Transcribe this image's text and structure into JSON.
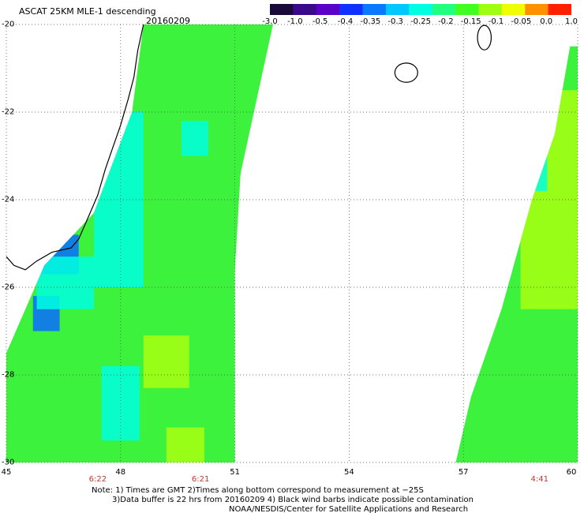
{
  "title": "ASCAT 25KM MLE-1 descending",
  "date": "20160209",
  "colorbar": {
    "ticks": [
      "-3.0",
      "-1.0",
      "-0.5",
      "-0.4",
      "-0.35",
      "-0.3",
      "-0.25",
      "-0.2",
      "-0.15",
      "-0.1",
      "-0.05",
      "0.0",
      "1.0"
    ],
    "colors": [
      "#1a0a3a",
      "#3a0a8a",
      "#5a00c8",
      "#1030ff",
      "#0a78ff",
      "#00c8ff",
      "#00ffe0",
      "#20ff80",
      "#40ff20",
      "#a0ff10",
      "#f0ff00",
      "#ff9000",
      "#ff2000"
    ]
  },
  "map": {
    "lon_range": [
      45,
      60
    ],
    "lat_range": [
      -30,
      -20
    ],
    "lat_labels": [
      "-20",
      "-22",
      "-24",
      "-26",
      "-28",
      "-30"
    ],
    "lon_labels": [
      "45",
      "48",
      "51",
      "54",
      "57",
      "60"
    ],
    "grid": true,
    "swaths": [
      {
        "name": "west",
        "polygon": [
          [
            48.6,
            -20
          ],
          [
            50.0,
            -20
          ],
          [
            50.3,
            -20
          ],
          [
            51.3,
            -21.2
          ],
          [
            51.0,
            -25.6
          ],
          [
            51.0,
            -30
          ],
          [
            45.0,
            -30
          ],
          [
            45.0,
            -27.5
          ],
          [
            46.0,
            -25.5
          ],
          [
            47.3,
            -24.3
          ],
          [
            48.3,
            -22.0
          ]
        ]
      },
      {
        "name": "middle",
        "polygon": [
          [
            50.0,
            -20
          ],
          [
            52.0,
            -20
          ],
          [
            51.0,
            -24
          ],
          [
            50.7,
            -26
          ],
          [
            50.3,
            -28
          ],
          [
            49.8,
            -30
          ],
          [
            48.0,
            -30
          ],
          [
            48.5,
            -26
          ]
        ]
      },
      {
        "name": "east",
        "polygon": [
          [
            59.8,
            -20.5
          ],
          [
            60.0,
            -20.5
          ],
          [
            60.0,
            -30
          ],
          [
            56.8,
            -30
          ],
          [
            57.2,
            -28.5
          ],
          [
            58.0,
            -26.5
          ],
          [
            58.8,
            -24.0
          ],
          [
            59.4,
            -22.5
          ]
        ]
      }
    ],
    "patches": [
      {
        "category": "blue",
        "lon": [
          45.9,
          46.9
        ],
        "lat": [
          -25.7,
          -24.8
        ]
      },
      {
        "category": "blue",
        "lon": [
          45.7,
          46.4
        ],
        "lat": [
          -27.0,
          -26.2
        ]
      },
      {
        "category": "cyan",
        "lon": [
          47.3,
          48.6
        ],
        "lat": [
          -26.0,
          -22.0
        ]
      },
      {
        "category": "cyan",
        "lon": [
          45.8,
          47.3
        ],
        "lat": [
          -26.5,
          -25.3
        ]
      },
      {
        "category": "cyan",
        "lon": [
          47.5,
          48.5
        ],
        "lat": [
          -29.5,
          -27.8
        ]
      },
      {
        "category": "cyan",
        "lon": [
          49.6,
          50.3
        ],
        "lat": [
          -23.0,
          -22.2
        ]
      },
      {
        "category": "lime",
        "lon": [
          49.2,
          50.2
        ],
        "lat": [
          -30.0,
          -29.2
        ]
      },
      {
        "category": "lime",
        "lon": [
          48.6,
          49.8
        ],
        "lat": [
          -28.3,
          -27.1
        ]
      },
      {
        "category": "lime",
        "lon": [
          58.5,
          60.0
        ],
        "lat": [
          -26.5,
          -21.5
        ]
      },
      {
        "category": "cyan",
        "lon": [
          58.6,
          59.2
        ],
        "lat": [
          -23.8,
          -23.0
        ]
      }
    ],
    "coast_madagascar": [
      [
        48.6,
        -20.0
      ],
      [
        48.45,
        -20.6
      ],
      [
        48.35,
        -21.2
      ],
      [
        48.2,
        -21.7
      ],
      [
        48.0,
        -22.3
      ],
      [
        47.8,
        -22.8
      ],
      [
        47.6,
        -23.3
      ],
      [
        47.4,
        -23.9
      ],
      [
        47.15,
        -24.4
      ],
      [
        46.9,
        -24.9
      ],
      [
        46.7,
        -25.1
      ],
      [
        46.2,
        -25.2
      ],
      [
        45.8,
        -25.4
      ],
      [
        45.5,
        -25.6
      ],
      [
        45.2,
        -25.5
      ],
      [
        45.0,
        -25.3
      ]
    ],
    "islands": [
      {
        "name": "Reunion",
        "lon": 55.5,
        "lat": -21.1,
        "rx": 0.3,
        "ry": 0.22
      },
      {
        "name": "Mauritius",
        "lon": 57.55,
        "lat": -20.3,
        "rx": 0.18,
        "ry": 0.28
      }
    ]
  },
  "passes": [
    {
      "time": "6:22",
      "lon": 47.4
    },
    {
      "time": "6:21",
      "lon": 50.1
    },
    {
      "time": "4:41",
      "lon": 59.0
    }
  ],
  "notes": [
    "Note: 1) Times are GMT 2)Times along bottom correspond to measurement at −25S",
    "3)Data buffer is 22 hrs from 20160209 4) Black wind barbs indicate possible contamination",
    "NOAA/NESDIS/Center for Satellite Applications and Research"
  ]
}
